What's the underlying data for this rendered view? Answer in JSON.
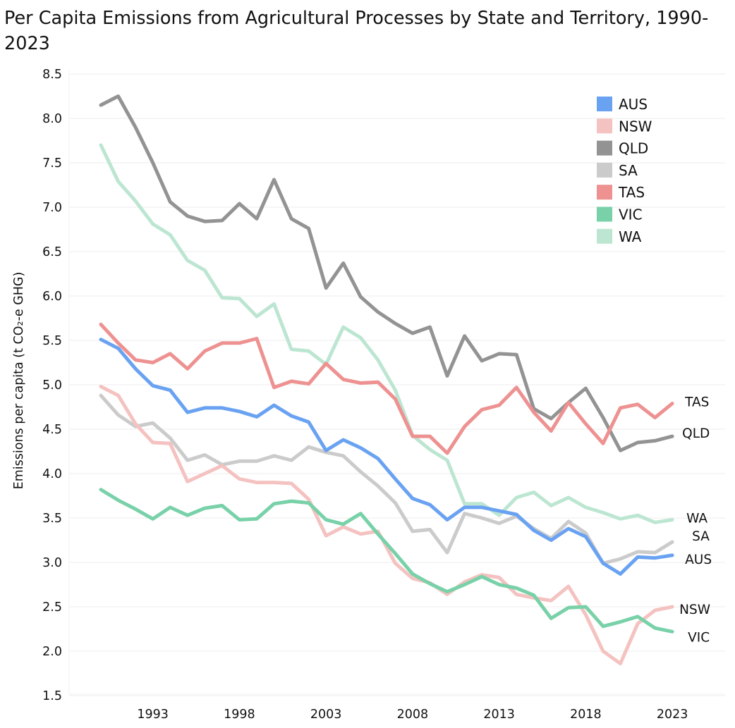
{
  "chart_data": {
    "type": "line",
    "title": "Per Capita Emissions from Agricultural Processes by State and Territory, 1990-2023",
    "ylabel": "Emissions per capita (t CO₂-e GHG)",
    "xlabel": "",
    "ylim": [
      1.5,
      8.5
    ],
    "xlim": [
      1990,
      2024
    ],
    "grid": true,
    "legend_position": "top-right",
    "x_ticks": [
      1993,
      1998,
      2003,
      2008,
      2013,
      2018,
      2023
    ],
    "y_ticks": [
      1.5,
      2.0,
      2.5,
      3.0,
      3.5,
      4.0,
      4.5,
      5.0,
      5.5,
      6.0,
      6.5,
      7.0,
      7.5,
      8.0,
      8.5
    ],
    "x": [
      1990,
      1991,
      1992,
      1993,
      1994,
      1995,
      1996,
      1997,
      1998,
      1999,
      2000,
      2001,
      2002,
      2003,
      2004,
      2005,
      2006,
      2007,
      2008,
      2009,
      2010,
      2011,
      2012,
      2013,
      2014,
      2015,
      2016,
      2017,
      2018,
      2019,
      2020,
      2021,
      2022,
      2023
    ],
    "series": [
      {
        "name": "AUS",
        "color": "#6aa2f2",
        "end_label": "AUS",
        "values": [
          5.51,
          5.41,
          5.18,
          4.99,
          4.94,
          4.69,
          4.74,
          4.74,
          4.7,
          4.64,
          4.77,
          4.65,
          4.58,
          4.26,
          4.38,
          4.29,
          4.17,
          3.94,
          3.72,
          3.65,
          3.48,
          3.62,
          3.62,
          3.58,
          3.54,
          3.36,
          3.25,
          3.38,
          3.29,
          2.99,
          2.87,
          3.06,
          3.05,
          3.08
        ]
      },
      {
        "name": "NSW",
        "color": "#f4c2c0",
        "end_label": "NSW",
        "values": [
          4.98,
          4.88,
          4.56,
          4.35,
          4.34,
          3.91,
          4.0,
          4.09,
          3.94,
          3.9,
          3.9,
          3.89,
          3.71,
          3.3,
          3.4,
          3.32,
          3.35,
          2.99,
          2.82,
          2.77,
          2.64,
          2.78,
          2.86,
          2.83,
          2.64,
          2.6,
          2.57,
          2.73,
          2.41,
          2.0,
          1.86,
          2.31,
          2.46,
          2.5
        ]
      },
      {
        "name": "QLD",
        "color": "#939393",
        "end_label": "QLD",
        "values": [
          8.15,
          8.25,
          7.9,
          7.5,
          7.06,
          6.9,
          6.84,
          6.85,
          7.04,
          6.87,
          7.31,
          6.87,
          6.76,
          6.09,
          6.37,
          5.99,
          5.82,
          5.69,
          5.58,
          5.65,
          5.1,
          5.55,
          5.27,
          5.35,
          5.34,
          4.73,
          4.62,
          4.8,
          4.96,
          4.63,
          4.26,
          4.35,
          4.37,
          4.42
        ]
      },
      {
        "name": "SA",
        "color": "#cbcbcb",
        "end_label": "SA",
        "values": [
          4.88,
          4.66,
          4.53,
          4.57,
          4.4,
          4.15,
          4.21,
          4.1,
          4.14,
          4.14,
          4.2,
          4.15,
          4.3,
          4.24,
          4.2,
          4.02,
          3.86,
          3.67,
          3.35,
          3.37,
          3.11,
          3.55,
          3.5,
          3.44,
          3.52,
          3.38,
          3.27,
          3.46,
          3.33,
          2.99,
          3.04,
          3.12,
          3.11,
          3.23
        ]
      },
      {
        "name": "TAS",
        "color": "#ee9191",
        "end_label": "TAS",
        "values": [
          5.68,
          5.47,
          5.28,
          5.25,
          5.35,
          5.18,
          5.38,
          5.47,
          5.47,
          5.52,
          4.97,
          5.04,
          5.01,
          5.24,
          5.06,
          5.02,
          5.03,
          4.84,
          4.42,
          4.42,
          4.23,
          4.53,
          4.72,
          4.77,
          4.97,
          4.69,
          4.48,
          4.8,
          4.56,
          4.34,
          4.74,
          4.78,
          4.63,
          4.79
        ]
      },
      {
        "name": "VIC",
        "color": "#78d1a8",
        "end_label": "VIC",
        "values": [
          3.82,
          3.7,
          3.6,
          3.49,
          3.62,
          3.53,
          3.61,
          3.64,
          3.48,
          3.49,
          3.66,
          3.69,
          3.67,
          3.48,
          3.43,
          3.55,
          3.32,
          3.1,
          2.87,
          2.76,
          2.67,
          2.75,
          2.84,
          2.75,
          2.71,
          2.63,
          2.37,
          2.49,
          2.5,
          2.28,
          2.33,
          2.39,
          2.26,
          2.22
        ]
      },
      {
        "name": "WA",
        "color": "#bce6d2",
        "end_label": "WA",
        "values": [
          7.7,
          7.29,
          7.07,
          6.81,
          6.69,
          6.4,
          6.29,
          5.98,
          5.97,
          5.77,
          5.91,
          5.4,
          5.38,
          5.23,
          5.65,
          5.53,
          5.28,
          4.94,
          4.43,
          4.27,
          4.15,
          3.66,
          3.66,
          3.53,
          3.73,
          3.79,
          3.64,
          3.73,
          3.62,
          3.56,
          3.49,
          3.53,
          3.45,
          3.48
        ]
      }
    ]
  }
}
